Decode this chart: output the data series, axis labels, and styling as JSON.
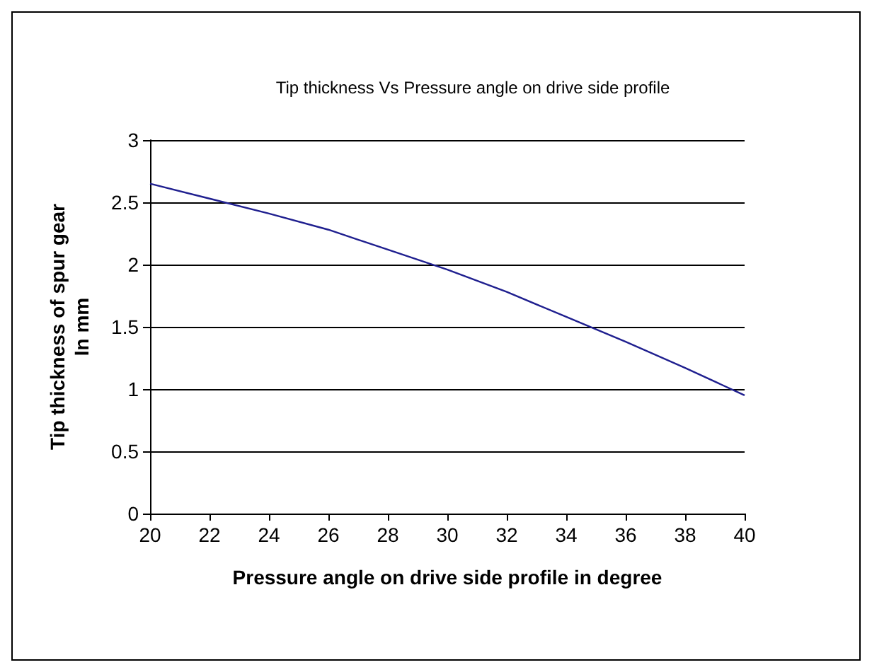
{
  "chart_data": {
    "type": "line",
    "title": "Tip thickness Vs Pressure angle on drive side profile",
    "xlabel": "Pressure angle on drive side profile in degree",
    "ylabel": "Tip thickness of spur gear\nIn mm",
    "x": [
      20,
      22,
      24,
      26,
      28,
      30,
      32,
      34,
      36,
      38,
      40
    ],
    "series": [
      {
        "color": "#1f1f8f",
        "values": [
          2.65,
          2.53,
          2.41,
          2.28,
          2.12,
          1.96,
          1.78,
          1.58,
          1.38,
          1.17,
          0.95
        ]
      }
    ],
    "xlim": [
      20,
      40
    ],
    "xticks": [
      20,
      22,
      24,
      26,
      28,
      30,
      32,
      34,
      36,
      38,
      40
    ],
    "ylim": [
      0,
      3
    ],
    "yticks": [
      0,
      0.5,
      1,
      1.5,
      2,
      2.5,
      3
    ],
    "grid": "y",
    "marker": "none",
    "line_style": "solid"
  }
}
